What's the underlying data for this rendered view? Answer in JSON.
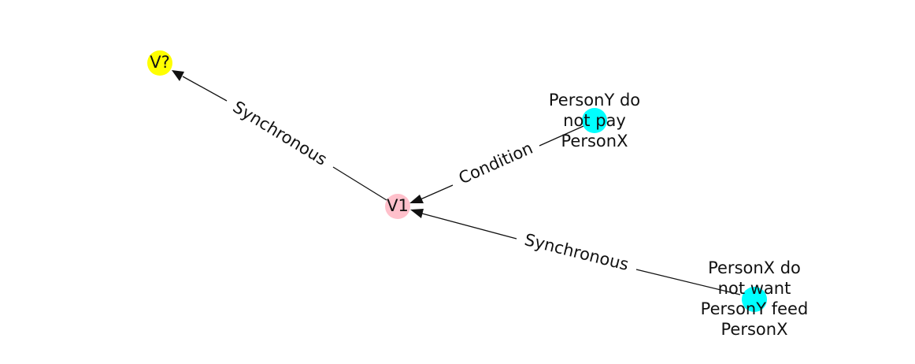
{
  "nodes": [
    {
      "id": "v_question",
      "label": "V?",
      "color": "#ffff00"
    },
    {
      "id": "v1",
      "label": "V1",
      "color": "#ffc0cb"
    },
    {
      "id": "persony_not_pay",
      "label_lines": [
        "PersonY do",
        "not pay",
        "PersonX"
      ],
      "color": "#00ffff"
    },
    {
      "id": "personx_not_want",
      "label_lines": [
        "PersonX do",
        "not want",
        "PersonY feed",
        "PersonX"
      ],
      "color": "#00ffff"
    }
  ],
  "edges": [
    {
      "id": "e1",
      "source": "v1",
      "target": "v_question",
      "label": "Synchronous"
    },
    {
      "id": "e2",
      "source": "persony_not_pay",
      "target": "v1",
      "label": "Condition"
    },
    {
      "id": "e3",
      "source": "personx_not_want",
      "target": "v1",
      "label": "Synchronous"
    }
  ]
}
